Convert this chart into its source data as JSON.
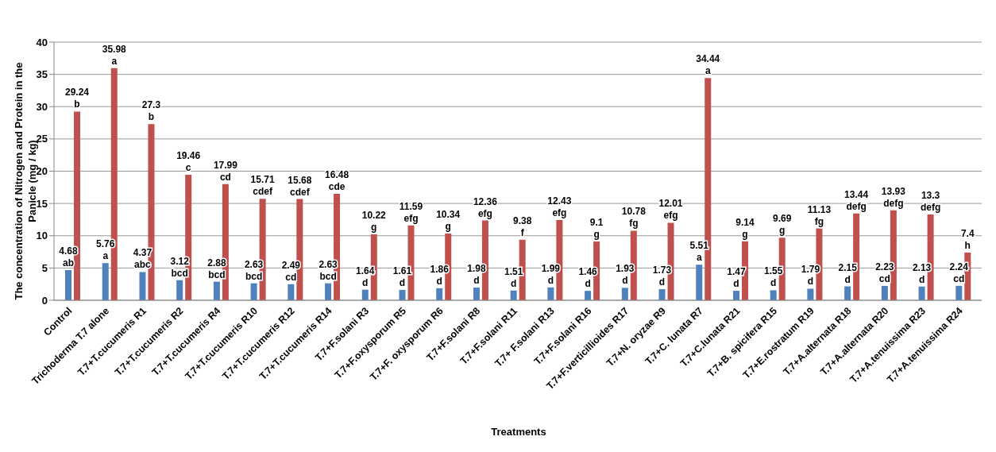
{
  "chart_data": {
    "type": "bar",
    "ylabel": "The concentration of Nitrogen and Protein in the Panicle  (mg / kg)",
    "xlabel": "Treatments",
    "categories": [
      "Control",
      "Trichoderma T.7 alone",
      "T.7+T.cucumeris R1",
      "T.7+T.cucumeris R2",
      "T.7+T.cucumeris R4",
      "T.7+T.cucumeris R10",
      "T.7+T.cucumeris R12",
      "T.7+T.cucumeris R14",
      "T.7+F.solani R3",
      "T.7+F.oxysporum R5",
      "T.7+F. oxysporum R6",
      "T.7+F.solani  R8",
      "T.7+F.solani  R11",
      "T.7+ F.solani R13",
      "T.7+F.solani  R16",
      "T.7+F.verticillioides R17",
      "T.7+N. oryzae R9",
      "T.7+C. lunata R7",
      "T.7+C.lunata R21",
      "T.7+B. spicifera R15",
      "T.7+E.rostratum  R19",
      "T.7+A.alternata R18",
      "T.7+A.alternata R20",
      "T.7+A.tenuissima R23",
      "T.7+A.tenuissima R24"
    ],
    "series": [
      {
        "color": "#4f81bd",
        "values": [
          4.68,
          5.76,
          4.37,
          3.12,
          2.88,
          2.63,
          2.49,
          2.63,
          1.64,
          1.61,
          1.86,
          1.98,
          1.51,
          1.99,
          1.46,
          1.93,
          1.73,
          5.51,
          1.47,
          1.55,
          1.79,
          2.15,
          2.23,
          2.13,
          2.24
        ]
      },
      {
        "color": "#c0504d",
        "values": [
          29.24,
          35.98,
          27.3,
          19.46,
          17.99,
          15.71,
          15.68,
          16.48,
          10.22,
          11.59,
          10.34,
          12.36,
          9.38,
          12.43,
          9.1,
          10.78,
          12.01,
          34.44,
          9.14,
          9.69,
          11.13,
          13.44,
          13.93,
          13.3,
          7.4
        ]
      }
    ],
    "ylim": [
      0,
      40
    ],
    "yticks": [
      0,
      5,
      10,
      15,
      20,
      25,
      30,
      35,
      40
    ],
    "grid": "y",
    "data_labels": true,
    "legend": false,
    "annotations": [
      {
        "text": "ab",
        "x": "Control",
        "y": 4.68
      },
      {
        "text": "a",
        "x": "Trichoderma T.7 alone",
        "y": 5.76
      },
      {
        "text": "abc",
        "x": "T.7+T.cucumeris R1",
        "y": 4.37
      },
      {
        "text": "bcd",
        "x": "T.7+T.cucumeris R2",
        "y": 3.12
      },
      {
        "text": "bcd",
        "x": "T.7+T.cucumeris R4",
        "y": 2.88
      },
      {
        "text": "bcd",
        "x": "T.7+T.cucumeris R10",
        "y": 2.63
      },
      {
        "text": "cd",
        "x": "T.7+T.cucumeris R12",
        "y": 2.49
      },
      {
        "text": "bcd",
        "x": "T.7+T.cucumeris R14",
        "y": 2.63
      },
      {
        "text": "d",
        "x": "T.7+F.solani R3",
        "y": 1.64
      },
      {
        "text": "d",
        "x": "T.7+F.oxysporum R5",
        "y": 1.61
      },
      {
        "text": "d",
        "x": "T.7+F. oxysporum R6",
        "y": 1.86
      },
      {
        "text": "d",
        "x": "T.7+F.solani  R8",
        "y": 1.98
      },
      {
        "text": "d",
        "x": "T.7+F.solani  R11",
        "y": 1.51
      },
      {
        "text": "d",
        "x": "T.7+ F.solani R13",
        "y": 1.99
      },
      {
        "text": "d",
        "x": "T.7+F.solani  R16",
        "y": 1.46
      },
      {
        "text": "d",
        "x": "T.7+F.verticillioides R17",
        "y": 1.93
      },
      {
        "text": "d",
        "x": "T.7+N. oryzae R9",
        "y": 1.73
      },
      {
        "text": "a",
        "x": "T.7+C. lunata R7",
        "y": 5.51
      },
      {
        "text": "d",
        "x": "T.7+C.lunata R21",
        "y": 1.47
      },
      {
        "text": "d",
        "x": "T.7+B. spicifera R15",
        "y": 1.55
      },
      {
        "text": "d",
        "x": "T.7+E.rostratum  R19",
        "y": 1.79
      },
      {
        "text": "d",
        "x": "T.7+A.alternata R18",
        "y": 2.15
      },
      {
        "text": "cd",
        "x": "T.7+A.alternata R20",
        "y": 2.23
      },
      {
        "text": "d",
        "x": "T.7+A.tenuissima R23",
        "y": 2.13
      },
      {
        "text": "cd",
        "x": "T.7+A.tenuissima R24",
        "y": 2.24
      },
      {
        "text": "b",
        "x": "Control",
        "y": 29.24
      },
      {
        "text": "a",
        "x": "Trichoderma T.7 alone",
        "y": 35.98
      },
      {
        "text": "b",
        "x": "T.7+T.cucumeris R1",
        "y": 27.3
      },
      {
        "text": "c",
        "x": "T.7+T.cucumeris R2",
        "y": 19.46
      },
      {
        "text": "cd",
        "x": "T.7+T.cucumeris R4",
        "y": 17.99
      },
      {
        "text": "cdef",
        "x": "T.7+T.cucumeris R10",
        "y": 15.71
      },
      {
        "text": "cdef",
        "x": "T.7+T.cucumeris R12",
        "y": 15.68
      },
      {
        "text": "cde",
        "x": "T.7+T.cucumeris R14",
        "y": 16.48
      },
      {
        "text": "g",
        "x": "T.7+F.solani R3",
        "y": 10.22
      },
      {
        "text": "efg",
        "x": "T.7+F.oxysporum R5",
        "y": 11.59
      },
      {
        "text": "g",
        "x": "T.7+F. oxysporum R6",
        "y": 10.34
      },
      {
        "text": "efg",
        "x": "T.7+F.solani  R8",
        "y": 12.36
      },
      {
        "text": "f",
        "x": "T.7+F.solani  R11",
        "y": 9.38
      },
      {
        "text": "efg",
        "x": "T.7+ F.solani R13",
        "y": 12.43
      },
      {
        "text": "g",
        "x": "T.7+F.solani  R16",
        "y": 9.1
      },
      {
        "text": "fg",
        "x": "T.7+F.verticillioides R17",
        "y": 10.78
      },
      {
        "text": "efg",
        "x": "T.7+N. oryzae R9",
        "y": 12.01
      },
      {
        "text": "a",
        "x": "T.7+C. lunata R7",
        "y": 34.44
      },
      {
        "text": "g",
        "x": "T.7+C.lunata R21",
        "y": 9.14
      },
      {
        "text": "g",
        "x": "T.7+B. spicifera R15",
        "y": 9.69
      },
      {
        "text": "fg",
        "x": "T.7+E.rostratum  R19",
        "y": 11.13
      },
      {
        "text": "defg",
        "x": "T.7+A.alternata R18",
        "y": 13.44
      },
      {
        "text": "defg",
        "x": "T.7+A.alternata R20",
        "y": 13.93
      },
      {
        "text": "defg",
        "x": "T.7+A.tenuissima R23",
        "y": 13.3
      },
      {
        "text": "h",
        "x": "T.7+A.tenuissima R24",
        "y": 7.4
      }
    ]
  }
}
